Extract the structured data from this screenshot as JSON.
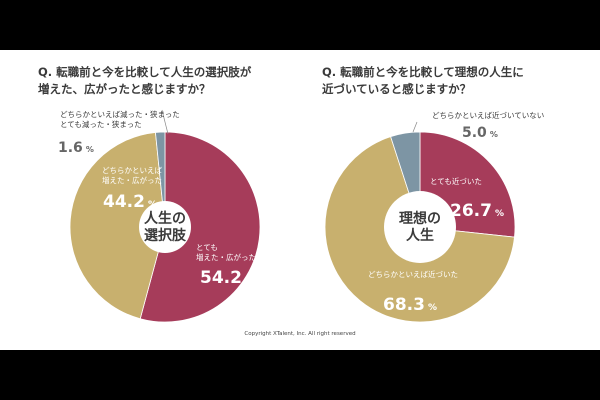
{
  "colors": {
    "background": "#000000",
    "panel": "#ffffff",
    "crimson": "#a63c5a",
    "khaki": "#c8b06e",
    "steel": "#7d95a4",
    "hole": "#ffffff",
    "text_dark": "#3a3a3a",
    "text_light": "#ffffff"
  },
  "chart_data": [
    {
      "type": "pie",
      "title_lines": [
        "Q. 転職前と今を比較して人生の選択肢が",
        "増えた、広がったと感じますか？"
      ],
      "center_label_lines": [
        "人生の",
        "選択肢"
      ],
      "slices": [
        {
          "label_lines": [
            "とても",
            "増えた・広がった"
          ],
          "value": 54.2,
          "display": "54.2",
          "unit": "%",
          "color": "#a63c5a"
        },
        {
          "label_lines": [
            "どちらかといえば",
            "増えた・広がった"
          ],
          "value": 44.2,
          "display": "44.2",
          "unit": "%",
          "color": "#c8b06e"
        },
        {
          "label_lines": [
            "どちらかといえば減った・狭まった",
            "とても減った・狭まった"
          ],
          "value": 1.6,
          "display": "1.6",
          "unit": "%",
          "color": "#7d95a4"
        }
      ]
    },
    {
      "type": "pie",
      "title_lines": [
        "Q. 転職前と今を比較して理想の人生に",
        "近づいていると感じますか？"
      ],
      "center_label_lines": [
        "理想の",
        "人生"
      ],
      "slices": [
        {
          "label_lines": [
            "とても近づいた"
          ],
          "value": 26.7,
          "display": "26.7",
          "unit": "%",
          "color": "#a63c5a"
        },
        {
          "label_lines": [
            "どちらかといえば近づいた"
          ],
          "value": 68.3,
          "display": "68.3",
          "unit": "%",
          "color": "#c8b06e"
        },
        {
          "label_lines": [
            "どちらかといえば近づいていない"
          ],
          "value": 5.0,
          "display": "5.0",
          "unit": "%",
          "color": "#7d95a4"
        }
      ]
    }
  ],
  "footer": {
    "copyright": "Copyright XTalent, Inc. All right reserved"
  }
}
